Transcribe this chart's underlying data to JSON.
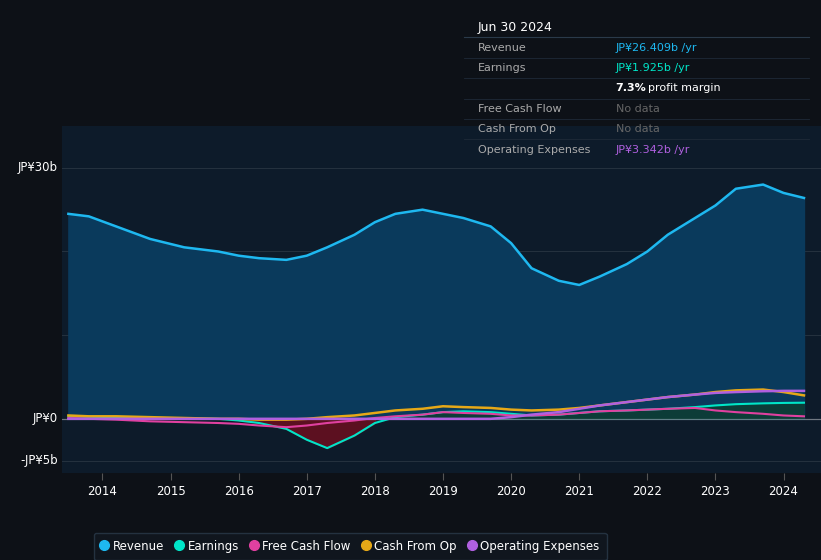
{
  "background_color": "#0d1117",
  "plot_bg_color": "#0d1b2a",
  "x_years": [
    2013.5,
    2013.8,
    2014.2,
    2014.7,
    2015.2,
    2015.7,
    2016.0,
    2016.3,
    2016.7,
    2017.0,
    2017.3,
    2017.7,
    2018.0,
    2018.3,
    2018.7,
    2019.0,
    2019.3,
    2019.7,
    2020.0,
    2020.3,
    2020.7,
    2021.0,
    2021.3,
    2021.7,
    2022.0,
    2022.3,
    2022.7,
    2023.0,
    2023.3,
    2023.7,
    2024.0,
    2024.3
  ],
  "revenue": [
    24.5,
    24.2,
    23.0,
    21.5,
    20.5,
    20.0,
    19.5,
    19.2,
    19.0,
    19.5,
    20.5,
    22.0,
    23.5,
    24.5,
    25.0,
    24.5,
    24.0,
    23.0,
    21.0,
    18.0,
    16.5,
    16.0,
    17.0,
    18.5,
    20.0,
    22.0,
    24.0,
    25.5,
    27.5,
    28.0,
    27.0,
    26.4
  ],
  "earnings": [
    0.3,
    0.25,
    0.2,
    0.1,
    0.05,
    0.0,
    -0.2,
    -0.5,
    -1.2,
    -2.5,
    -3.5,
    -2.0,
    -0.5,
    0.2,
    0.5,
    0.8,
    0.9,
    0.8,
    0.6,
    0.4,
    0.5,
    0.7,
    0.9,
    1.0,
    1.1,
    1.2,
    1.4,
    1.6,
    1.75,
    1.85,
    1.9,
    1.925
  ],
  "free_cash_flow": [
    0.1,
    0.0,
    -0.1,
    -0.3,
    -0.4,
    -0.5,
    -0.6,
    -0.8,
    -1.0,
    -0.8,
    -0.5,
    -0.2,
    0.1,
    0.3,
    0.5,
    0.8,
    0.7,
    0.6,
    0.4,
    0.4,
    0.5,
    0.7,
    0.9,
    1.0,
    1.1,
    1.2,
    1.3,
    1.0,
    0.8,
    0.6,
    0.4,
    0.3
  ],
  "cash_from_op": [
    0.4,
    0.3,
    0.3,
    0.2,
    0.1,
    0.0,
    0.0,
    -0.1,
    -0.1,
    0.0,
    0.2,
    0.4,
    0.7,
    1.0,
    1.2,
    1.5,
    1.4,
    1.3,
    1.1,
    1.0,
    1.1,
    1.3,
    1.6,
    2.0,
    2.3,
    2.6,
    2.9,
    3.2,
    3.4,
    3.5,
    3.2,
    2.8
  ],
  "op_expenses": [
    0.0,
    0.0,
    0.0,
    0.0,
    0.0,
    0.0,
    0.0,
    0.0,
    0.0,
    0.0,
    0.0,
    0.0,
    0.0,
    0.0,
    0.0,
    0.0,
    0.0,
    0.0,
    0.2,
    0.5,
    0.8,
    1.2,
    1.6,
    2.0,
    2.3,
    2.6,
    2.9,
    3.1,
    3.2,
    3.3,
    3.34,
    3.342
  ],
  "revenue_color": "#1eb8f0",
  "earnings_color": "#00e5c8",
  "fcf_color": "#e040a0",
  "cashop_color": "#e6a817",
  "opex_color": "#b060e0",
  "revenue_fill": "#0a3a5c",
  "earnings_fill_pos": "#0d3d35",
  "earnings_fill_neg": "#5c1020",
  "ylim": [
    -6.5,
    35
  ],
  "xlim": [
    2013.4,
    2024.55
  ],
  "ytick_positions": [
    -5,
    0,
    30
  ],
  "ytick_labels": [
    "-JP¥5b",
    "JP¥0",
    "JP¥30b"
  ],
  "xticks": [
    2014,
    2015,
    2016,
    2017,
    2018,
    2019,
    2020,
    2021,
    2022,
    2023,
    2024
  ],
  "grid_y_positions": [
    -5,
    0,
    10,
    20,
    30
  ],
  "info_box": {
    "title": "Jun 30 2024",
    "rows": [
      {
        "label": "Revenue",
        "value": "JP¥26.409b /yr",
        "value_color": "#1eb8f0",
        "dimmed": false
      },
      {
        "label": "Earnings",
        "value": "JP¥1.925b /yr",
        "value_color": "#00e5c8",
        "dimmed": false
      },
      {
        "label": "",
        "value": "7.3% profit margin",
        "value_color": "#ffffff",
        "dimmed": false,
        "special": true
      },
      {
        "label": "Free Cash Flow",
        "value": "No data",
        "value_color": "#666666",
        "dimmed": true
      },
      {
        "label": "Cash From Op",
        "value": "No data",
        "value_color": "#666666",
        "dimmed": true
      },
      {
        "label": "Operating Expenses",
        "value": "JP¥3.342b /yr",
        "value_color": "#b060e0",
        "dimmed": false
      }
    ]
  },
  "legend_items": [
    {
      "label": "Revenue",
      "color": "#1eb8f0"
    },
    {
      "label": "Earnings",
      "color": "#00e5c8"
    },
    {
      "label": "Free Cash Flow",
      "color": "#e040a0"
    },
    {
      "label": "Cash From Op",
      "color": "#e6a817"
    },
    {
      "label": "Operating Expenses",
      "color": "#b060e0"
    }
  ]
}
